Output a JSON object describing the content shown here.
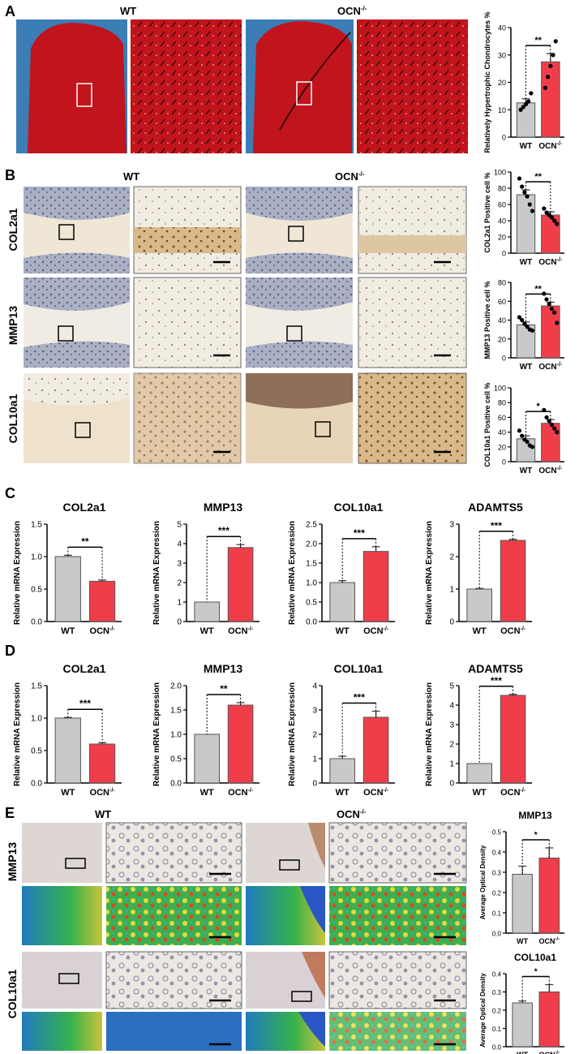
{
  "figure": {
    "panel_letters": [
      "A",
      "B",
      "C",
      "D",
      "E"
    ],
    "genotypes": {
      "wt": "WT",
      "ko": "OCN",
      "ko_sup": "-/-"
    },
    "row_labels": {
      "col2a1": "COL2a1",
      "mmp13": "MMP13",
      "col10a1": "COL10a1"
    },
    "colors": {
      "wt_bar": "#c8c9cb",
      "ko_bar": "#ef3e4a",
      "safranin_red": "#c1141c",
      "fast_green": "#3b7db4"
    }
  },
  "chart_data": [
    {
      "id": "A",
      "type": "bar",
      "categories": [
        "WT",
        "OCN-/-"
      ],
      "values": [
        12.5,
        27.5
      ],
      "errors": [
        1.5,
        3.0
      ],
      "ylabel": "Relatively Hypertrophic Chondrocytes %",
      "ylim": [
        0,
        40
      ],
      "yticks": [
        0,
        10,
        20,
        30,
        40
      ],
      "sig": "**",
      "points": [
        [
          10,
          11,
          12,
          13,
          16
        ],
        [
          18,
          22,
          26,
          30,
          35
        ]
      ]
    },
    {
      "id": "B1",
      "type": "bar",
      "categories": [
        "WT",
        "OCN-/-"
      ],
      "values": [
        72,
        47
      ],
      "errors": [
        6,
        4
      ],
      "ylabel": "COL2a1 Positive cell %",
      "ylim": [
        0,
        100
      ],
      "yticks": [
        0,
        20,
        40,
        60,
        80,
        100
      ],
      "sig": "**",
      "points": [
        [
          92,
          82,
          75,
          70,
          60,
          52
        ],
        [
          55,
          50,
          47,
          44,
          40,
          36
        ]
      ]
    },
    {
      "id": "B2",
      "type": "bar",
      "categories": [
        "WT",
        "OCN-/-"
      ],
      "values": [
        35,
        55
      ],
      "errors": [
        3,
        4
      ],
      "ylabel": "MMP13 Positive cell %",
      "ylim": [
        0,
        80
      ],
      "yticks": [
        0,
        20,
        40,
        60,
        80
      ],
      "sig": "**",
      "points": [
        [
          43,
          40,
          36,
          33,
          30,
          29
        ],
        [
          68,
          62,
          57,
          52,
          48,
          37
        ]
      ]
    },
    {
      "id": "B3",
      "type": "bar",
      "categories": [
        "WT",
        "OCN-/-"
      ],
      "values": [
        31,
        52
      ],
      "errors": [
        4,
        5
      ],
      "ylabel": "COL10a1 Positive cell %",
      "ylim": [
        0,
        100
      ],
      "yticks": [
        0,
        20,
        40,
        60,
        80,
        100
      ],
      "sig": "*",
      "points": [
        [
          42,
          35,
          30,
          27,
          22,
          20
        ],
        [
          70,
          60,
          55,
          50,
          45,
          40
        ]
      ]
    },
    {
      "id": "C1",
      "type": "bar",
      "title": "COL2a1",
      "categories": [
        "WT",
        "OCN-/-"
      ],
      "values": [
        1.0,
        0.62
      ],
      "errors": [
        0.02,
        0.02
      ],
      "ylabel": "Relative mRNA Expression",
      "ylim": [
        0,
        1.5
      ],
      "yticks": [
        "0.0",
        "0.5",
        "1.0",
        "1.5"
      ],
      "sig": "**"
    },
    {
      "id": "C2",
      "type": "bar",
      "title": "MMP13",
      "categories": [
        "WT",
        "OCN-/-"
      ],
      "values": [
        1.0,
        3.8
      ],
      "errors": [
        0,
        0.15
      ],
      "ylabel": "Relative mRNA Expression",
      "ylim": [
        0,
        5
      ],
      "yticks": [
        "0",
        "1",
        "2",
        "3",
        "4",
        "5"
      ],
      "sig": "***"
    },
    {
      "id": "C3",
      "type": "bar",
      "title": "COL10a1",
      "categories": [
        "WT",
        "OCN-/-"
      ],
      "values": [
        1.0,
        1.8
      ],
      "errors": [
        0.05,
        0.12
      ],
      "ylabel": "Relative mRNA Expression",
      "ylim": [
        0,
        2.5
      ],
      "yticks": [
        "0.0",
        "0.5",
        "1.0",
        "1.5",
        "2.0",
        "2.5"
      ],
      "sig": "***"
    },
    {
      "id": "C4",
      "type": "bar",
      "title": "ADAMTS5",
      "categories": [
        "WT",
        "OCN-/-"
      ],
      "values": [
        1.0,
        2.5
      ],
      "errors": [
        0.02,
        0.03
      ],
      "ylabel": "Relative mRNA Expression",
      "ylim": [
        0,
        3
      ],
      "yticks": [
        "0",
        "1",
        "2",
        "3"
      ],
      "sig": "***"
    },
    {
      "id": "D1",
      "type": "bar",
      "title": "COL2a1",
      "categories": [
        "WT",
        "OCN-/-"
      ],
      "values": [
        1.0,
        0.6
      ],
      "errors": [
        0.01,
        0.02
      ],
      "ylabel": "Relative mRNA Expression",
      "ylim": [
        0,
        1.5
      ],
      "yticks": [
        "0.0",
        "0.5",
        "1.0",
        "1.5"
      ],
      "sig": "***"
    },
    {
      "id": "D2",
      "type": "bar",
      "title": "MMP13",
      "categories": [
        "WT",
        "OCN-/-"
      ],
      "values": [
        1.0,
        1.6
      ],
      "errors": [
        0,
        0.05
      ],
      "ylabel": "Relative mRNA Expression",
      "ylim": [
        0,
        2.0
      ],
      "yticks": [
        "0.0",
        "0.5",
        "1.0",
        "1.5",
        "2.0"
      ],
      "sig": "**"
    },
    {
      "id": "D3",
      "type": "bar",
      "title": "COL10a1",
      "categories": [
        "WT",
        "OCN-/-"
      ],
      "values": [
        1.0,
        2.7
      ],
      "errors": [
        0.1,
        0.25
      ],
      "ylabel": "Relative mRNA Expression",
      "ylim": [
        0,
        4
      ],
      "yticks": [
        "0",
        "1",
        "2",
        "3",
        "4"
      ],
      "sig": "***"
    },
    {
      "id": "D4",
      "type": "bar",
      "title": "ADAMTS5",
      "categories": [
        "WT",
        "OCN-/-"
      ],
      "values": [
        1.0,
        4.5
      ],
      "errors": [
        0,
        0.05
      ],
      "ylabel": "Relative mRNA Expression",
      "ylim": [
        0,
        5
      ],
      "yticks": [
        "0",
        "1",
        "2",
        "3",
        "4",
        "5"
      ],
      "sig": "***"
    },
    {
      "id": "E1",
      "type": "bar",
      "title": "MMP13",
      "categories": [
        "WT",
        "OCN-/-"
      ],
      "values": [
        0.29,
        0.37
      ],
      "errors": [
        0.04,
        0.05
      ],
      "ylabel": "Average Optical Density",
      "ylim": [
        0,
        0.5
      ],
      "yticks": [
        "0.0",
        "0.1",
        "0.2",
        "0.3",
        "0.4",
        "0.5"
      ],
      "sig": "*"
    },
    {
      "id": "E2",
      "type": "bar",
      "title": "COL10a1",
      "categories": [
        "WT",
        "OCN-/-"
      ],
      "values": [
        0.24,
        0.3
      ],
      "errors": [
        0.01,
        0.04
      ],
      "ylabel": "Average Optical Density",
      "ylim": [
        0,
        0.4
      ],
      "yticks": [
        "0.0",
        "0.1",
        "0.2",
        "0.3",
        "0.4"
      ],
      "sig": "*"
    }
  ]
}
